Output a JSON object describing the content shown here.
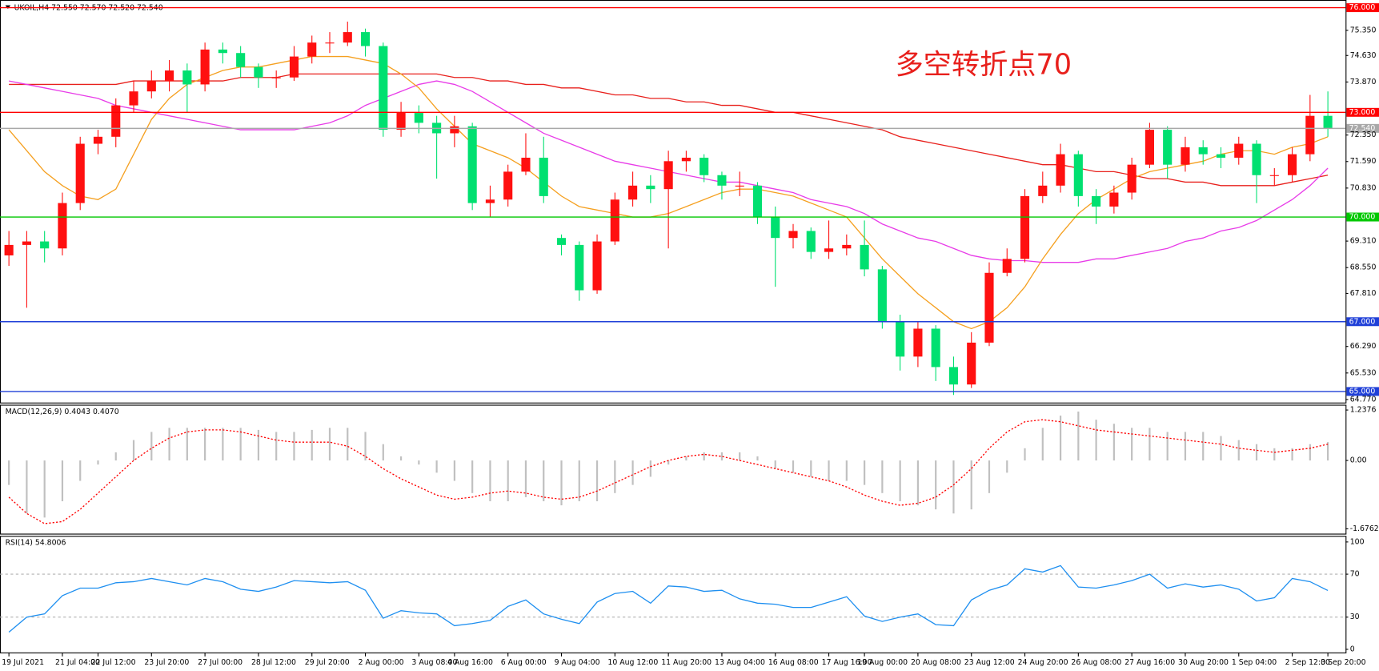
{
  "chart_data": [
    {
      "type": "candlestick",
      "title": "UKOIL,H4 72.550 72.570 72.520 72.540",
      "annotation": "多空转折点70",
      "categories": [
        "19 Jul 2021",
        null,
        null,
        "21 Jul 04:00",
        null,
        "22 Jul 12:00",
        null,
        null,
        "23 Jul 20:00",
        null,
        null,
        "27 Jul 00:00",
        null,
        null,
        "28 Jul 12:00",
        null,
        null,
        "29 Jul 20:00",
        null,
        null,
        "2 Aug 00:00",
        null,
        null,
        "3 Aug 08:00",
        null,
        "4 Aug 16:00",
        null,
        null,
        "6 Aug 00:00",
        null,
        null,
        "9 Aug 04:00",
        null,
        null,
        "10 Aug 12:00",
        null,
        null,
        "11 Aug 20:00",
        null,
        null,
        "13 Aug 04:00",
        null,
        null,
        "16 Aug 08:00",
        null,
        null,
        "17 Aug 16:00",
        null,
        "19 Aug 00:00",
        null,
        null,
        "20 Aug 08:00",
        null,
        null,
        "23 Aug 12:00",
        null,
        null,
        "24 Aug 20:00",
        null,
        null,
        "26 Aug 08:00",
        null,
        null,
        "27 Aug 16:00",
        null,
        null,
        "30 Aug 20:00",
        null,
        null,
        "1 Sep 04:00",
        null,
        null,
        "2 Sep 12:00",
        null,
        "3 Sep 20:00"
      ],
      "open": [
        68.9,
        69.2,
        69.3,
        69.1,
        70.4,
        72.1,
        72.3,
        73.2,
        73.6,
        73.9,
        74.2,
        73.8,
        74.8,
        74.7,
        74.3,
        74.0,
        74.0,
        74.6,
        75.0,
        75.0,
        75.3,
        74.9,
        72.5,
        73.0,
        72.7,
        72.4,
        72.6,
        70.4,
        70.5,
        71.3,
        71.7,
        69.4,
        69.2,
        67.9,
        69.3,
        70.5,
        70.9,
        70.8,
        71.6,
        71.7,
        71.2,
        70.9,
        70.9,
        70.0,
        69.4,
        69.6,
        69.0,
        69.1,
        69.2,
        68.5,
        67.0,
        66.0,
        66.8,
        65.7,
        65.2,
        66.4,
        68.4,
        68.8,
        70.6,
        70.9,
        71.8,
        70.6,
        70.3,
        70.7,
        71.5,
        72.5,
        71.5,
        72.0,
        71.8,
        71.7,
        72.1,
        71.2,
        71.2,
        71.8,
        72.9
      ],
      "high": [
        69.6,
        69.6,
        69.6,
        70.7,
        72.3,
        72.5,
        73.4,
        73.9,
        74.2,
        74.5,
        74.4,
        75.0,
        75.0,
        74.9,
        74.4,
        74.2,
        74.9,
        75.2,
        75.3,
        75.6,
        75.4,
        75.0,
        73.3,
        73.2,
        72.9,
        72.9,
        72.7,
        70.9,
        71.5,
        72.4,
        72.3,
        69.5,
        69.3,
        69.5,
        70.7,
        71.3,
        71.2,
        71.9,
        71.9,
        71.8,
        71.3,
        71.3,
        71.0,
        70.3,
        69.8,
        69.7,
        69.9,
        69.5,
        69.9,
        68.6,
        67.2,
        67.0,
        66.9,
        66.0,
        66.7,
        68.7,
        69.1,
        70.8,
        71.3,
        72.1,
        71.9,
        70.8,
        70.9,
        71.7,
        72.7,
        72.6,
        72.3,
        72.2,
        72.0,
        72.3,
        72.2,
        71.4,
        72.0,
        73.5,
        73.6
      ],
      "low": [
        68.6,
        67.4,
        68.7,
        68.9,
        70.2,
        71.8,
        72.0,
        73.0,
        73.4,
        73.6,
        73.0,
        73.6,
        74.4,
        74.0,
        73.7,
        73.7,
        73.9,
        74.4,
        74.7,
        74.9,
        74.6,
        72.3,
        72.3,
        72.4,
        71.1,
        72.0,
        70.2,
        70.0,
        70.3,
        71.2,
        70.4,
        68.9,
        67.6,
        67.8,
        69.2,
        70.3,
        70.4,
        69.1,
        71.3,
        71.0,
        70.5,
        70.6,
        69.8,
        68.0,
        69.1,
        68.8,
        68.8,
        68.9,
        68.3,
        66.8,
        65.6,
        65.7,
        65.3,
        64.9,
        65.1,
        66.3,
        68.3,
        68.7,
        70.4,
        70.7,
        70.3,
        69.8,
        70.1,
        70.5,
        71.4,
        71.1,
        71.3,
        71.5,
        71.4,
        71.5,
        70.4,
        70.9,
        71.0,
        71.6,
        72.3
      ],
      "close": [
        69.2,
        69.3,
        69.1,
        70.4,
        72.1,
        72.3,
        73.2,
        73.6,
        73.9,
        74.2,
        73.8,
        74.8,
        74.7,
        74.3,
        74.0,
        74.0,
        74.6,
        75.0,
        75.0,
        75.3,
        74.9,
        72.5,
        73.0,
        72.7,
        72.4,
        72.6,
        70.4,
        70.5,
        71.3,
        71.7,
        70.6,
        69.2,
        67.9,
        69.3,
        70.5,
        70.9,
        70.8,
        71.6,
        71.7,
        71.2,
        70.9,
        70.9,
        70.0,
        69.4,
        69.6,
        69.0,
        69.1,
        69.2,
        68.5,
        67.0,
        66.0,
        66.8,
        65.7,
        65.2,
        66.4,
        68.4,
        68.8,
        70.6,
        70.9,
        71.8,
        70.6,
        70.3,
        70.7,
        71.5,
        72.5,
        71.5,
        72.0,
        71.8,
        71.7,
        72.1,
        71.2,
        71.2,
        71.8,
        72.9,
        72.54
      ],
      "up_color": "#ff1010",
      "down_color": "#00e070",
      "series": [
        {
          "color": "#e8201c",
          "values": [
            73.8,
            73.8,
            73.8,
            73.8,
            73.8,
            73.8,
            73.8,
            73.9,
            73.9,
            73.9,
            73.9,
            73.9,
            73.9,
            74.0,
            74.0,
            74.0,
            74.1,
            74.1,
            74.1,
            74.1,
            74.1,
            74.1,
            74.1,
            74.1,
            74.1,
            74.0,
            74.0,
            73.9,
            73.9,
            73.8,
            73.8,
            73.7,
            73.7,
            73.6,
            73.5,
            73.5,
            73.4,
            73.4,
            73.3,
            73.3,
            73.2,
            73.2,
            73.1,
            73.0,
            73.0,
            72.9,
            72.8,
            72.7,
            72.6,
            72.5,
            72.3,
            72.2,
            72.1,
            72.0,
            71.9,
            71.8,
            71.7,
            71.6,
            71.5,
            71.5,
            71.4,
            71.3,
            71.3,
            71.2,
            71.1,
            71.1,
            71.0,
            71.0,
            70.9,
            70.9,
            70.9,
            70.9,
            71.0,
            71.1,
            71.2
          ]
        },
        {
          "color": "#e83ce8",
          "values": [
            73.9,
            73.8,
            73.7,
            73.6,
            73.5,
            73.4,
            73.2,
            73.1,
            73.0,
            72.9,
            72.8,
            72.7,
            72.6,
            72.5,
            72.5,
            72.5,
            72.5,
            72.6,
            72.7,
            72.9,
            73.2,
            73.4,
            73.6,
            73.8,
            73.9,
            73.8,
            73.6,
            73.3,
            73.0,
            72.7,
            72.4,
            72.2,
            72.0,
            71.8,
            71.6,
            71.5,
            71.4,
            71.3,
            71.2,
            71.1,
            71.0,
            71.0,
            70.9,
            70.8,
            70.7,
            70.5,
            70.4,
            70.3,
            70.1,
            69.8,
            69.6,
            69.4,
            69.3,
            69.1,
            68.9,
            68.8,
            68.75,
            68.75,
            68.7,
            68.7,
            68.7,
            68.8,
            68.8,
            68.9,
            69.0,
            69.1,
            69.3,
            69.4,
            69.6,
            69.7,
            69.9,
            70.2,
            70.5,
            70.9,
            71.4
          ]
        },
        {
          "color": "#f5a020",
          "values": [
            72.5,
            71.9,
            71.3,
            70.9,
            70.6,
            70.5,
            70.8,
            71.8,
            72.8,
            73.4,
            73.8,
            74.0,
            74.2,
            74.3,
            74.3,
            74.4,
            74.5,
            74.6,
            74.6,
            74.6,
            74.5,
            74.4,
            74.1,
            73.7,
            73.1,
            72.6,
            72.1,
            71.9,
            71.7,
            71.4,
            71.0,
            70.6,
            70.3,
            70.2,
            70.1,
            70.0,
            70.0,
            70.1,
            70.3,
            70.5,
            70.7,
            70.8,
            70.8,
            70.7,
            70.6,
            70.4,
            70.2,
            70.0,
            69.4,
            68.8,
            68.3,
            67.8,
            67.4,
            67.0,
            66.8,
            67.0,
            67.4,
            68.0,
            68.8,
            69.5,
            70.1,
            70.5,
            70.8,
            71.1,
            71.3,
            71.4,
            71.5,
            71.6,
            71.8,
            71.9,
            71.9,
            71.8,
            72.0,
            72.1,
            72.3
          ]
        }
      ],
      "levels": [
        {
          "value": 76,
          "label": "76.000",
          "color": "#ff0000"
        },
        {
          "value": 73,
          "label": "73.000",
          "color": "#ff0000"
        },
        {
          "value": 72.54,
          "label": "72.540",
          "color": "#a8a8a8"
        },
        {
          "value": 70,
          "label": "70.000",
          "color": "#00c800"
        },
        {
          "value": 67,
          "label": "67.000",
          "color": "#2040d8"
        },
        {
          "value": 65,
          "label": "65.000",
          "color": "#2040d8"
        }
      ],
      "ylim": [
        64.67,
        76.22
      ],
      "yticks": [
        {
          "value": 75.35,
          "label": "75.350"
        },
        {
          "value": 74.63,
          "label": "74.630"
        },
        {
          "value": 73.87,
          "label": "73.870"
        },
        {
          "value": 72.35,
          "label": "72.350"
        },
        {
          "value": 71.59,
          "label": "71.590"
        },
        {
          "value": 70.83,
          "label": "70.830"
        },
        {
          "value": 69.31,
          "label": "69.310"
        },
        {
          "value": 68.55,
          "label": "68.550"
        },
        {
          "value": 67.81,
          "label": "67.810"
        },
        {
          "value": 66.29,
          "label": "66.290"
        },
        {
          "value": 65.53,
          "label": "65.530"
        },
        {
          "value": 64.77,
          "label": "64.770"
        }
      ]
    },
    {
      "type": "macd",
      "title": "MACD(12,26,9) 0.4043 0.4070",
      "histogram": {
        "color": "#c0c0c0",
        "values": [
          -0.6,
          -1.3,
          -1.4,
          -1.0,
          -0.5,
          -0.1,
          0.2,
          0.5,
          0.7,
          0.8,
          0.8,
          0.8,
          0.8,
          0.8,
          0.75,
          0.7,
          0.7,
          0.75,
          0.8,
          0.8,
          0.7,
          0.4,
          0.1,
          -0.1,
          -0.3,
          -0.5,
          -0.8,
          -1.0,
          -1.0,
          -0.9,
          -1.0,
          -1.1,
          -1.0,
          -1.0,
          -0.8,
          -0.6,
          -0.4,
          -0.1,
          0.1,
          0.2,
          0.2,
          0.2,
          0.1,
          -0.2,
          -0.3,
          -0.4,
          -0.5,
          -0.5,
          -0.6,
          -0.8,
          -1.0,
          -1.1,
          -1.2,
          -1.3,
          -1.2,
          -0.8,
          -0.3,
          0.3,
          0.8,
          1.1,
          1.2,
          1.0,
          0.9,
          0.8,
          0.8,
          0.7,
          0.7,
          0.7,
          0.6,
          0.5,
          0.4,
          0.3,
          0.3,
          0.4,
          0.45
        ]
      },
      "signal": {
        "color": "#ff0000",
        "values": [
          -0.9,
          -1.3,
          -1.55,
          -1.5,
          -1.2,
          -0.8,
          -0.4,
          0.0,
          0.3,
          0.55,
          0.7,
          0.75,
          0.75,
          0.7,
          0.6,
          0.5,
          0.45,
          0.45,
          0.45,
          0.35,
          0.1,
          -0.2,
          -0.45,
          -0.65,
          -0.85,
          -0.95,
          -0.9,
          -0.8,
          -0.75,
          -0.8,
          -0.9,
          -0.95,
          -0.9,
          -0.75,
          -0.55,
          -0.35,
          -0.15,
          0.0,
          0.1,
          0.15,
          0.1,
          0.0,
          -0.1,
          -0.2,
          -0.3,
          -0.4,
          -0.5,
          -0.65,
          -0.85,
          -1.0,
          -1.1,
          -1.05,
          -0.9,
          -0.6,
          -0.2,
          0.3,
          0.7,
          0.95,
          1.0,
          0.95,
          0.85,
          0.75,
          0.7,
          0.65,
          0.6,
          0.55,
          0.5,
          0.45,
          0.4,
          0.3,
          0.25,
          0.2,
          0.25,
          0.3,
          0.4
        ]
      },
      "ylim": [
        -1.806,
        1.367
      ],
      "yticks": [
        1.2376,
        {
          "value": 0,
          "label": "0.00"
        },
        -1.6762
      ]
    },
    {
      "type": "line",
      "title": "RSI(14) 54.8006",
      "series": [
        {
          "color": "#1e8ff0",
          "values": [
            16,
            30,
            33,
            50,
            57,
            57,
            62,
            63,
            66,
            63,
            60,
            66,
            63,
            56,
            54,
            58,
            64,
            63,
            62,
            63,
            55,
            29,
            36,
            34,
            33,
            22,
            24,
            27,
            40,
            46,
            33,
            28,
            24,
            44,
            52,
            54,
            43,
            59,
            58,
            54,
            55,
            47,
            43,
            42,
            39,
            39,
            44,
            49,
            31,
            26,
            30,
            33,
            23,
            22,
            46,
            55,
            60,
            75,
            72,
            78,
            58,
            57,
            60,
            64,
            70,
            57,
            61,
            58,
            60,
            56,
            45,
            48,
            66,
            63,
            54.8
          ]
        }
      ],
      "levels": [
        70,
        30
      ],
      "ylim": [
        -3.3,
        105.7
      ],
      "yticks": [
        100,
        70,
        30,
        0
      ]
    }
  ]
}
